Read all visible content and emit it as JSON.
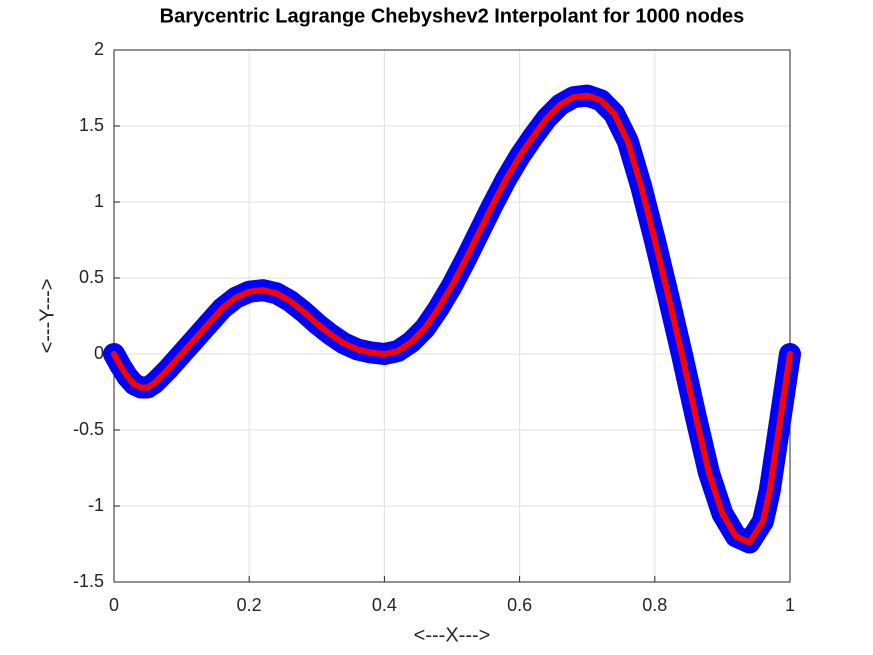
{
  "chart_data": {
    "type": "line",
    "title": "Barycentric Lagrange Chebyshev2 Interpolant for 1000 nodes",
    "x_label": "<---X--->",
    "y_label": "<---Y--->",
    "x": [
      0,
      0.01,
      0.02,
      0.03,
      0.04,
      0.05,
      0.06,
      0.08,
      0.1,
      0.12,
      0.14,
      0.16,
      0.18,
      0.2,
      0.22,
      0.24,
      0.26,
      0.28,
      0.3,
      0.32,
      0.34,
      0.36,
      0.38,
      0.4,
      0.42,
      0.44,
      0.46,
      0.48,
      0.5,
      0.52,
      0.54,
      0.56,
      0.58,
      0.6,
      0.62,
      0.64,
      0.66,
      0.68,
      0.7,
      0.72,
      0.74,
      0.76,
      0.78,
      0.8,
      0.82,
      0.84,
      0.86,
      0.88,
      0.9,
      0.92,
      0.94,
      0.96,
      0.97,
      0.98,
      0.99,
      1
    ],
    "series": [
      {
        "color": "#0000ff",
        "mode": "markers",
        "values": [
          0,
          -0.08,
          -0.15,
          -0.2,
          -0.22,
          -0.22,
          -0.19,
          -0.1,
          0,
          0.1,
          0.2,
          0.3,
          0.37,
          0.41,
          0.42,
          0.4,
          0.35,
          0.28,
          0.2,
          0.13,
          0.07,
          0.03,
          0.01,
          0,
          0.02,
          0.08,
          0.17,
          0.3,
          0.45,
          0.62,
          0.8,
          0.98,
          1.15,
          1.3,
          1.43,
          1.55,
          1.64,
          1.69,
          1.7,
          1.67,
          1.58,
          1.4,
          1.1,
          0.75,
          0.38,
          0,
          -0.4,
          -0.78,
          -1.05,
          -1.2,
          -1.24,
          -1.1,
          -0.9,
          -0.6,
          -0.3,
          0
        ]
      },
      {
        "color": "#ff0000",
        "mode": "line",
        "values": [
          0,
          -0.08,
          -0.15,
          -0.2,
          -0.22,
          -0.22,
          -0.19,
          -0.1,
          0,
          0.1,
          0.2,
          0.3,
          0.37,
          0.41,
          0.42,
          0.4,
          0.35,
          0.28,
          0.2,
          0.13,
          0.07,
          0.03,
          0.01,
          0,
          0.02,
          0.08,
          0.17,
          0.3,
          0.45,
          0.62,
          0.8,
          0.98,
          1.15,
          1.3,
          1.43,
          1.55,
          1.64,
          1.69,
          1.7,
          1.67,
          1.58,
          1.4,
          1.1,
          0.75,
          0.38,
          0,
          -0.4,
          -0.78,
          -1.05,
          -1.2,
          -1.24,
          -1.1,
          -0.9,
          -0.6,
          -0.3,
          0
        ]
      }
    ],
    "xlim": [
      0,
      1
    ],
    "xticks": [
      0,
      0.2,
      0.4,
      0.6,
      0.8,
      1
    ],
    "ylim": [
      -1.5,
      2
    ],
    "yticks": [
      -1.5,
      -1,
      -0.5,
      0,
      0.5,
      1,
      1.5,
      2
    ],
    "grid": true
  }
}
